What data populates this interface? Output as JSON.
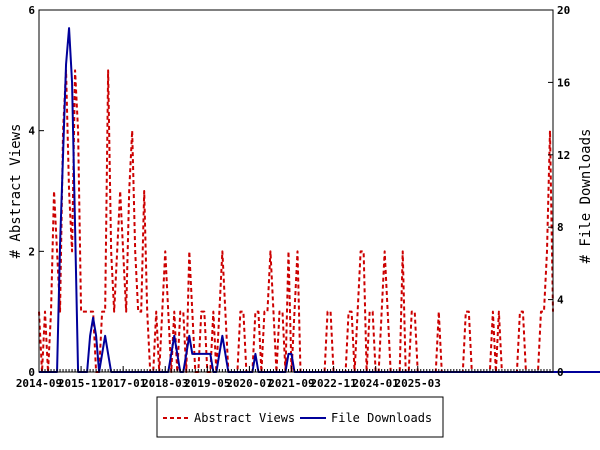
{
  "chart_data": {
    "type": "line",
    "x_tick_labels": [
      "2014-09",
      "2015-11",
      "2017-01",
      "2018-03",
      "2019-05",
      "2020-07",
      "2021-09",
      "2022-11",
      "2024-01",
      "2025-03"
    ],
    "ylabel_left": "# Abstract Views",
    "ylabel_right": "# File Downloads",
    "ylim_left": [
      0,
      6
    ],
    "ylim_right": [
      0,
      20
    ],
    "yticks_left": [
      0,
      2,
      4,
      6
    ],
    "yticks_right": [
      0,
      4,
      8,
      12,
      16,
      20
    ],
    "grid": false,
    "legend_position": "bottom-center",
    "series": [
      {
        "name": "Abstract Views",
        "axis": "left",
        "color": "#cc0000",
        "style": "dashed",
        "values": [
          1,
          0,
          1,
          0,
          1,
          3,
          2,
          1,
          4,
          5,
          3,
          2,
          5,
          4,
          1,
          1,
          1,
          1,
          1,
          0,
          0,
          1,
          1,
          5,
          2,
          1,
          2,
          3,
          2,
          1,
          3,
          4,
          2,
          1,
          1,
          3,
          1,
          0,
          0,
          1,
          0,
          1,
          2,
          1,
          0,
          1,
          0,
          1,
          1,
          0,
          2,
          1,
          0,
          0,
          1,
          1,
          0,
          0,
          1,
          0,
          1,
          2,
          1,
          0,
          0,
          0,
          0,
          1,
          1,
          0,
          0,
          0,
          1,
          1,
          0,
          1,
          1,
          2,
          1,
          0,
          1,
          1,
          0,
          2,
          0,
          1,
          2,
          0,
          0,
          0,
          0,
          0,
          0,
          0,
          0,
          0,
          1,
          1,
          0,
          0,
          0,
          0,
          0,
          1,
          1,
          0,
          1,
          2,
          2,
          0,
          1,
          1,
          0,
          0,
          1,
          2,
          1,
          0,
          0,
          0,
          0,
          2,
          0,
          0,
          1,
          1,
          0,
          0,
          0,
          0,
          0,
          0,
          0,
          1,
          0,
          0,
          0,
          0,
          0,
          0,
          0,
          0,
          1,
          1,
          0,
          0,
          0,
          0,
          0,
          0,
          0,
          1,
          0,
          1,
          0,
          0,
          0,
          0,
          0,
          0,
          1,
          1,
          0,
          0,
          0,
          0,
          0,
          1,
          1,
          2,
          4,
          1
        ]
      },
      {
        "name": "File Downloads",
        "axis": "right",
        "color": "#00009a",
        "style": "solid",
        "values": [
          0,
          0,
          0,
          0,
          0,
          0,
          0,
          7,
          12,
          17,
          19,
          16,
          8,
          0,
          0,
          0,
          0,
          2,
          3,
          2,
          0,
          1,
          2,
          1,
          0,
          0,
          0,
          0,
          0,
          0,
          0,
          0,
          0,
          0,
          0,
          0,
          0,
          0,
          0,
          0,
          0,
          0,
          0,
          0,
          1,
          2,
          1,
          0,
          0,
          1,
          2,
          1,
          1,
          1,
          1,
          1,
          1,
          1,
          0,
          0,
          1,
          2,
          1,
          0,
          0,
          0,
          0,
          0,
          0,
          0,
          0,
          0,
          1,
          0,
          0,
          0,
          0,
          0,
          0,
          0,
          0,
          0,
          0,
          1,
          1,
          0,
          0,
          0,
          0,
          0,
          0,
          0,
          0,
          0,
          0,
          0,
          0,
          0,
          0,
          0,
          0,
          0,
          0,
          0,
          0,
          0,
          0,
          0,
          0,
          0,
          0,
          0,
          0,
          0,
          0,
          0,
          0,
          0,
          0,
          0,
          0,
          0,
          0,
          0,
          0,
          0,
          0,
          0,
          0,
          0,
          0,
          0,
          0,
          0,
          0,
          0,
          0,
          0,
          0,
          0,
          0,
          0,
          0,
          0,
          0,
          0,
          0,
          0,
          0,
          0,
          0,
          0,
          0,
          0,
          0,
          0,
          0,
          0,
          0,
          0,
          0,
          0,
          0,
          0,
          0,
          0,
          0,
          0,
          0,
          0,
          0,
          0,
          0,
          0,
          0,
          0,
          0,
          0,
          0,
          0,
          0,
          0,
          0,
          0,
          0,
          0,
          0,
          0,
          0,
          0
        ]
      }
    ]
  }
}
